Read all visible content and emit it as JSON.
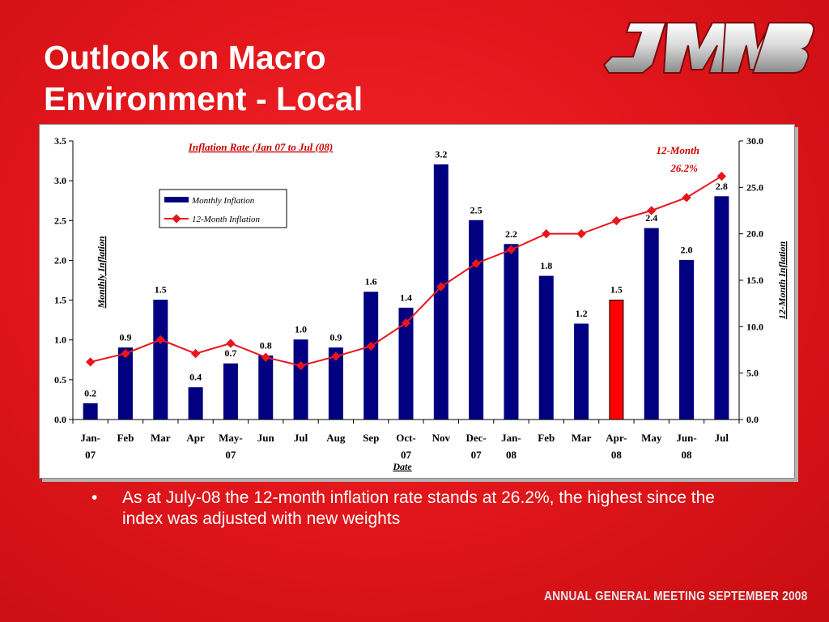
{
  "slide": {
    "title_line1": "Outlook on Macro",
    "title_line2": "Environment - Local",
    "bullet_marker": "•",
    "bullet_text": "As at July-08 the 12-month inflation rate stands at 26.2%, the highest since the index was adjusted with new weights",
    "footer": "ANNUAL GENERAL MEETING SEPTEMBER 2008"
  },
  "logo": {
    "text": "JMMB"
  },
  "colors": {
    "background": "#e3171c",
    "bar": "#000080",
    "bar_highlight": "#ff0000",
    "line": "#e8161c",
    "chart_title": "#cc0000"
  },
  "chart_data": {
    "type": "bar",
    "title": "Inflation Rate (Jan 07 to Jul (08)",
    "xlabel": "Date",
    "ylabel": "Monthly Inflation",
    "y2label": "12-Month Inflation",
    "annotation": {
      "line1": "12-Month",
      "line2": "26.2%"
    },
    "categories": [
      [
        "Jan-",
        "07"
      ],
      [
        "Feb",
        ""
      ],
      [
        "Mar",
        ""
      ],
      [
        "Apr",
        ""
      ],
      [
        "May-",
        "07"
      ],
      [
        "Jun",
        ""
      ],
      [
        "Jul",
        ""
      ],
      [
        "Aug",
        ""
      ],
      [
        "Sep",
        ""
      ],
      [
        "Oct-",
        "07"
      ],
      [
        "Nov",
        ""
      ],
      [
        "Dec-",
        "07"
      ],
      [
        "Jan-",
        "08"
      ],
      [
        "Feb",
        ""
      ],
      [
        "Mar",
        ""
      ],
      [
        "Apr-",
        "08"
      ],
      [
        "May",
        ""
      ],
      [
        "Jun-",
        "08"
      ],
      [
        "Jul",
        ""
      ]
    ],
    "series": [
      {
        "name": "Monthly Inflation",
        "kind": "bar",
        "axis": "left",
        "values": [
          0.2,
          0.9,
          1.5,
          0.4,
          0.7,
          0.8,
          1.0,
          0.9,
          1.6,
          1.4,
          3.2,
          2.5,
          2.2,
          1.8,
          1.2,
          1.5,
          2.4,
          2.0,
          2.8
        ],
        "labels": [
          "0.2",
          "0.9",
          "1.5",
          "0.4",
          "0.7",
          "0.8",
          "1.0",
          "0.9",
          "1.6",
          "1.4",
          "3.2",
          "2.5",
          "2.2",
          "1.8",
          "1.2",
          "1.5",
          "2.4",
          "2.0",
          "2.8"
        ],
        "highlight_index": 15
      },
      {
        "name": "12-Month Inflation",
        "kind": "line",
        "axis": "right",
        "values": [
          6.2,
          7.1,
          8.6,
          7.1,
          8.2,
          6.7,
          5.8,
          6.8,
          7.9,
          10.4,
          14.3,
          16.8,
          18.3,
          20.0,
          20.0,
          21.4,
          22.5,
          23.9,
          26.2
        ]
      }
    ],
    "ylim": [
      0,
      3.5
    ],
    "y_ticks": [
      "0.0",
      "0.5",
      "1.0",
      "1.5",
      "2.0",
      "2.5",
      "3.0",
      "3.5"
    ],
    "y2lim": [
      0,
      30
    ],
    "y2_ticks": [
      "0.0",
      "5.0",
      "10.0",
      "15.0",
      "20.0",
      "25.0",
      "30.0"
    ],
    "grid": false,
    "legend_position": "top-left"
  }
}
